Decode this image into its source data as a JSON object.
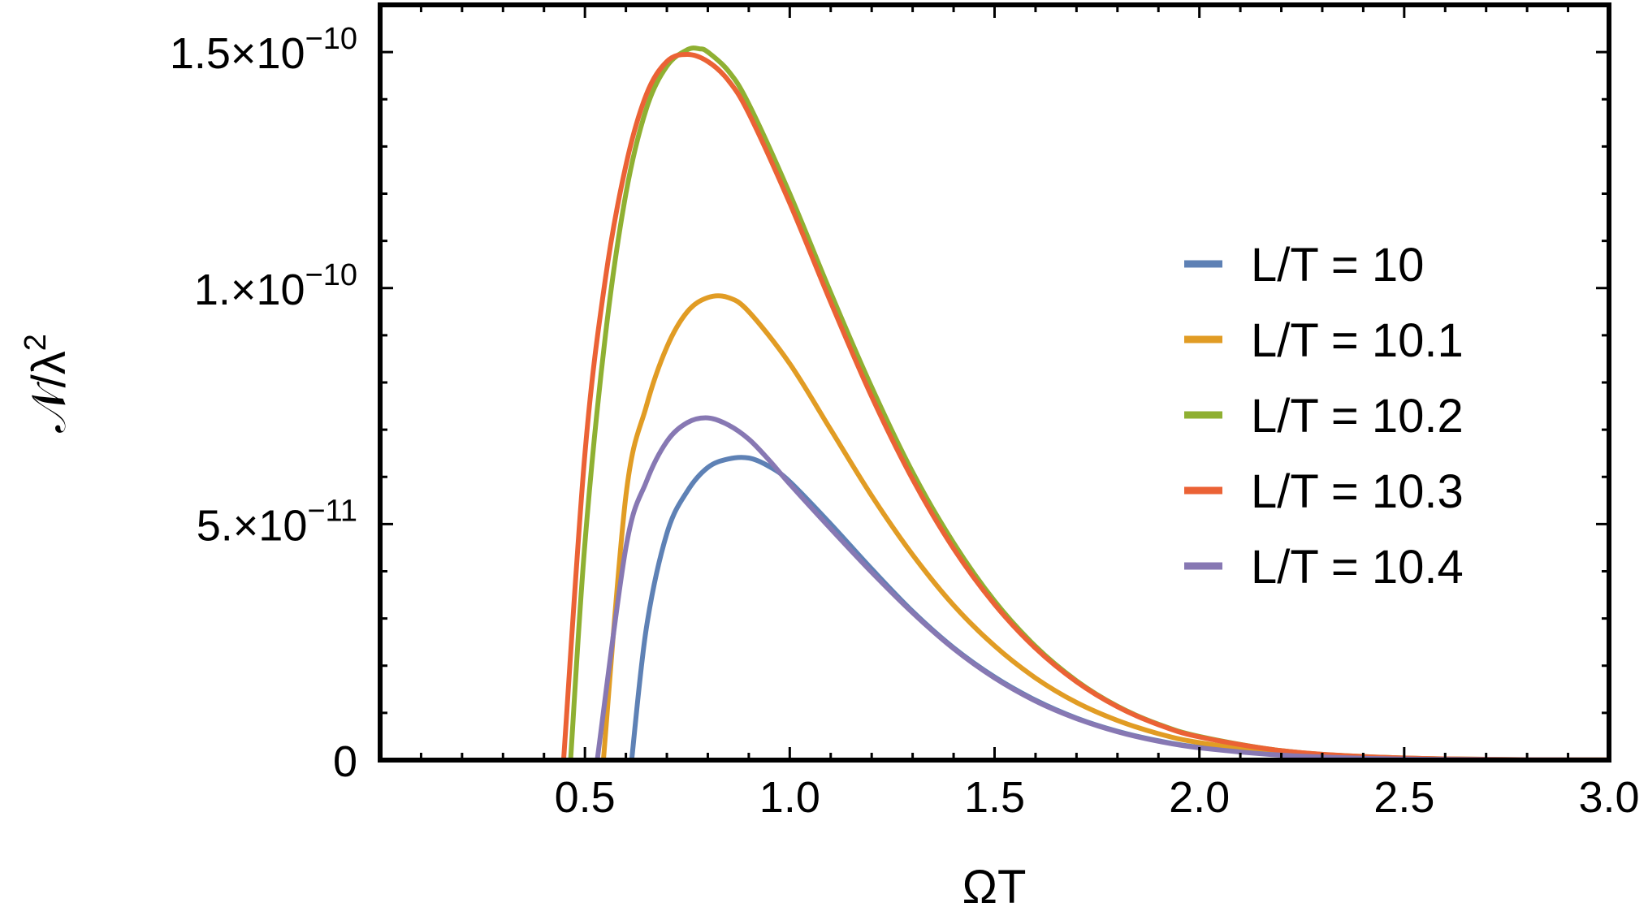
{
  "chart_data": {
    "type": "line",
    "xlabel": "ΩT",
    "ylabel": {
      "base": "𝒩/λ",
      "sup": "2"
    },
    "xlim": [
      0,
      3.0
    ],
    "ylim": [
      0,
      1.6e-10
    ],
    "xticks": [
      0.5,
      1.0,
      1.5,
      2.0,
      2.5,
      3.0
    ],
    "xtick_labels": [
      "0.5",
      "1.0",
      "1.5",
      "2.0",
      "2.5",
      "3.0"
    ],
    "yticks": [
      {
        "value": 0,
        "mantissa": "0",
        "exponent": ""
      },
      {
        "value": 5e-11,
        "mantissa": "5.×10",
        "exponent": "−11"
      },
      {
        "value": 1e-10,
        "mantissa": "1.×10",
        "exponent": "−10"
      },
      {
        "value": 1.5e-10,
        "mantissa": "1.5×10",
        "exponent": "−10"
      }
    ],
    "legend_position": "right",
    "series": [
      {
        "name": "L/T = 10",
        "color": "#5E81B5",
        "x": [
          0.614,
          0.65,
          0.7,
          0.75,
          0.8,
          0.85,
          0.9,
          0.95,
          1.0,
          1.1,
          1.2,
          1.3,
          1.4,
          1.5,
          1.6,
          1.7,
          1.8,
          1.9,
          2.0,
          2.2,
          2.4,
          2.6,
          2.8,
          3.0
        ],
        "y": [
          0,
          2.8e-11,
          4.8e-11,
          5.7e-11,
          6.2e-11,
          6.38e-11,
          6.4e-11,
          6.22e-11,
          5.9e-11,
          5e-11,
          4.05e-11,
          3.15e-11,
          2.38e-11,
          1.76e-11,
          1.27e-11,
          8.9e-12,
          6.1e-12,
          4.1e-12,
          2.7e-12,
          1.1e-12,
          4e-13,
          1.4e-13,
          5e-14,
          1.5e-14
        ]
      },
      {
        "name": "L/T = 10.1",
        "color": "#E19C24",
        "x": [
          0.545,
          0.6,
          0.65,
          0.7,
          0.75,
          0.8,
          0.85,
          0.9,
          1.0,
          1.1,
          1.2,
          1.3,
          1.4,
          1.5,
          1.6,
          1.7,
          1.8,
          1.9,
          2.0,
          2.2,
          2.4,
          2.6,
          2.8,
          3.0
        ],
        "y": [
          0,
          5.6e-11,
          7.5e-11,
          8.75e-11,
          9.5e-11,
          9.8e-11,
          9.8e-11,
          9.5e-11,
          8.4e-11,
          7e-11,
          5.6e-11,
          4.35e-11,
          3.28e-11,
          2.42e-11,
          1.74e-11,
          1.22e-11,
          8.4e-12,
          5.6e-12,
          3.7e-12,
          1.5e-12,
          5.8e-13,
          2e-13,
          7e-14,
          2e-14
        ]
      },
      {
        "name": "L/T = 10.2",
        "color": "#8FB032",
        "x": [
          0.465,
          0.5,
          0.55,
          0.6,
          0.65,
          0.7,
          0.75,
          0.78,
          0.8,
          0.85,
          0.9,
          1.0,
          1.1,
          1.2,
          1.3,
          1.4,
          1.5,
          1.6,
          1.7,
          1.8,
          1.9,
          2.0,
          2.2,
          2.4,
          2.6,
          2.8,
          3.0
        ],
        "y": [
          0,
          4.6e-11,
          9e-11,
          1.2e-10,
          1.38e-10,
          1.47e-10,
          1.505e-10,
          1.507e-10,
          1.5e-10,
          1.46e-10,
          1.39e-10,
          1.2e-10,
          9.9e-11,
          7.9e-11,
          6.1e-11,
          4.6e-11,
          3.37e-11,
          2.41e-11,
          1.68e-11,
          1.14e-11,
          7.6e-12,
          5e-12,
          2e-12,
          7.5e-13,
          2.6e-13,
          9e-14,
          3e-14
        ]
      },
      {
        "name": "L/T = 10.3",
        "color": "#EB6235",
        "x": [
          0.448,
          0.5,
          0.55,
          0.6,
          0.65,
          0.7,
          0.75,
          0.8,
          0.85,
          0.9,
          1.0,
          1.1,
          1.2,
          1.3,
          1.4,
          1.5,
          1.6,
          1.7,
          1.8,
          1.9,
          2.0,
          2.2,
          2.4,
          2.6,
          2.8,
          3.0
        ],
        "y": [
          0,
          6.5e-11,
          1.02e-10,
          1.26e-10,
          1.41e-10,
          1.48e-10,
          1.495e-10,
          1.48e-10,
          1.44e-10,
          1.37e-10,
          1.18e-10,
          9.7e-11,
          7.7e-11,
          5.95e-11,
          4.48e-11,
          3.3e-11,
          2.37e-11,
          1.66e-11,
          1.13e-11,
          7.5e-12,
          4.9e-12,
          2e-12,
          7.5e-13,
          2.6e-13,
          9e-14,
          3e-14
        ]
      },
      {
        "name": "L/T = 10.4",
        "color": "#8778B3",
        "x": [
          0.53,
          0.6,
          0.65,
          0.7,
          0.75,
          0.8,
          0.85,
          0.9,
          0.95,
          1.0,
          1.1,
          1.2,
          1.3,
          1.4,
          1.5,
          1.6,
          1.7,
          1.8,
          1.9,
          2.0,
          2.2,
          2.4,
          2.6,
          2.8,
          3.0
        ],
        "y": [
          0,
          4.5e-11,
          5.9e-11,
          6.75e-11,
          7.15e-11,
          7.25e-11,
          7.1e-11,
          6.8e-11,
          6.35e-11,
          5.85e-11,
          4.9e-11,
          3.98e-11,
          3.12e-11,
          2.36e-11,
          1.74e-11,
          1.25e-11,
          8.8e-12,
          6e-12,
          4e-12,
          2.6e-12,
          1.05e-12,
          3.9e-13,
          1.4e-13,
          5e-14,
          1.5e-14
        ]
      }
    ]
  }
}
